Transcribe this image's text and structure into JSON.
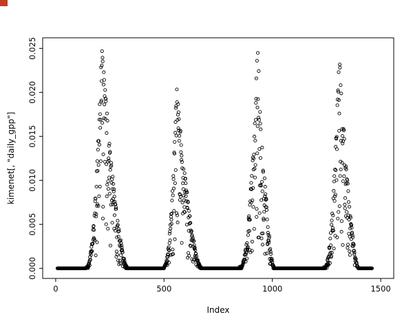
{
  "window": {
    "background": "#ffffff",
    "corner_artifact_color": "#c63a22"
  },
  "chart_data": {
    "type": "scatter",
    "title": "",
    "xlabel": "Index",
    "ylabel": "kimenet[, \"daily_gpp\"]",
    "xlim": [
      -60,
      1560
    ],
    "ylim": [
      -0.00115,
      0.0262
    ],
    "x_ticks": [
      0,
      500,
      1000,
      1500
    ],
    "x_tick_labels": [
      "0",
      "500",
      "1000",
      "1500"
    ],
    "y_tick_values": [
      0,
      0.005,
      0.01,
      0.015,
      0.02,
      0.025
    ],
    "y_tick_labels": [
      "0.000",
      "0.005",
      "0.010",
      "0.015",
      "0.020",
      "0.025"
    ],
    "grid": false,
    "legend": null,
    "marker": {
      "shape": "open-circle",
      "radius": 2.1,
      "stroke": "#000000",
      "stroke_width": 0.9,
      "fill": "none"
    },
    "seed": 20240515,
    "zero_value": 0.0,
    "zero_step": 2,
    "zero_runs": [
      [
        8,
        140
      ],
      [
        332,
        497
      ],
      [
        672,
        848
      ],
      [
        1008,
        1238
      ],
      [
        1398,
        1460
      ]
    ],
    "seasons": [
      {
        "start": 140,
        "peak_x": 212,
        "end": 332,
        "peak_y": 0.0255
      },
      {
        "start": 497,
        "peak_x": 558,
        "end": 672,
        "peak_y": 0.0205
      },
      {
        "start": 848,
        "peak_x": 932,
        "end": 1008,
        "peak_y": 0.0255
      },
      {
        "start": 1238,
        "peak_x": 1308,
        "end": 1398,
        "peak_y": 0.0245
      }
    ],
    "description": "R base-graphics scatter plot of daily GPP vs index: four seasonal peaks (~0.025, ~0.020, ~0.025, ~0.0245) separated by long runs of zero values rendered as dense overplotted open circles."
  }
}
